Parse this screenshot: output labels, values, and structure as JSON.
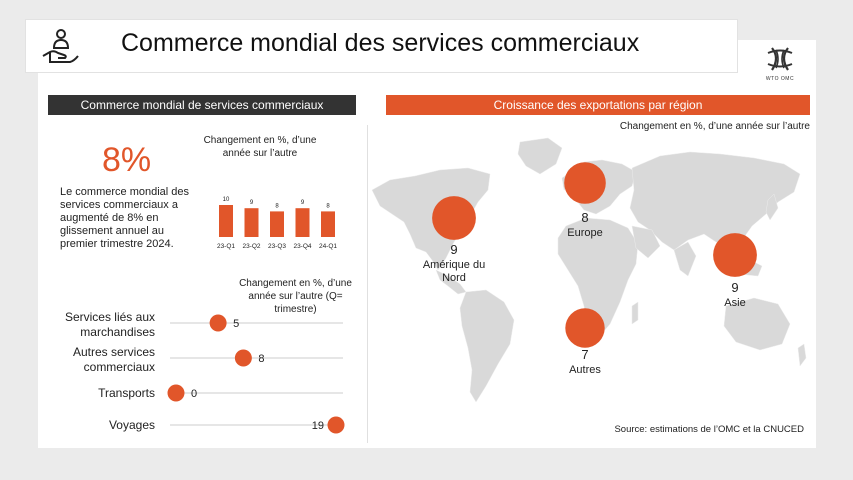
{
  "header": {
    "title": "Commerce mondial des services commerciaux",
    "logo_caption": "WTO OMC",
    "icon": "hand-person-icon"
  },
  "colors": {
    "accent": "#e1562a",
    "dark": "#333333",
    "bar": "#e1562a"
  },
  "left_panel": {
    "header": "Commerce mondial de services commerciaux",
    "big_value": "8%",
    "description": "Le commerce mondial des services commerciaux a augmenté de 8% en glissement annuel au premier trimestre 2024.",
    "bar_note": "Changement en %, d’une année sur l’autre",
    "dot_note": "Changement en %, d’une année sur l’autre (Q= trimestre)"
  },
  "right_panel": {
    "header": "Croissance des exportations par région",
    "note": "Changement en %, d’une année sur l’autre",
    "source": "Source: estimations de l’OMC et la CNUCED"
  },
  "chart_data": [
    {
      "type": "bar",
      "categories": [
        "23-Q1",
        "23-Q2",
        "23-Q3",
        "23-Q4",
        "24-Q1"
      ],
      "values": [
        10,
        9,
        8,
        9,
        8
      ],
      "ylim": [
        0,
        10
      ]
    },
    {
      "type": "scatter",
      "categories": [
        "Services liés aux marchandises",
        "Autres services commerciaux",
        "Transports",
        "Voyages"
      ],
      "values": [
        5,
        8,
        0,
        19
      ],
      "xlim": [
        0,
        19
      ]
    },
    {
      "type": "bubble-map",
      "regions": [
        {
          "name": "Amérique du Nord",
          "value": 9
        },
        {
          "name": "Europe",
          "value": 8
        },
        {
          "name": "Asie",
          "value": 9
        },
        {
          "name": "Autres",
          "value": 7
        }
      ]
    }
  ]
}
